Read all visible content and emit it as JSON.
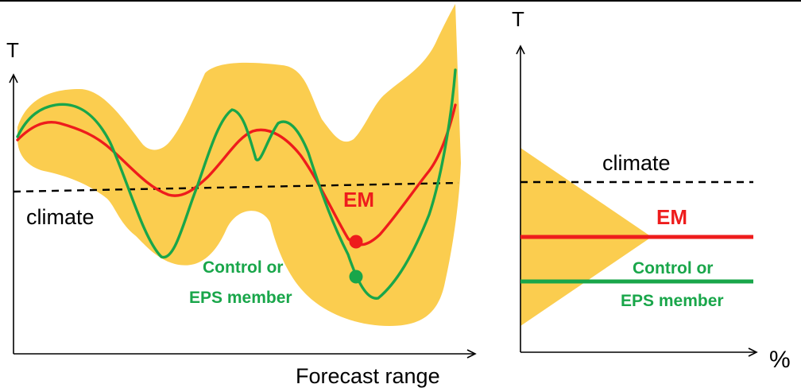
{
  "left_panel": {
    "y_axis_label": "T",
    "x_axis_label": "Forecast range",
    "climate_label": "climate",
    "em_label": "EM",
    "member_label_line1": "Control or",
    "member_label_line2": "EPS member"
  },
  "right_panel": {
    "y_axis_label": "T",
    "x_axis_label": "%",
    "climate_label": "climate",
    "em_label": "EM",
    "member_label_line1": "Control or",
    "member_label_line2": "EPS member"
  },
  "colors": {
    "spread": "#fbcd4f",
    "em": "#ee1c1c",
    "member": "#19a64a",
    "climate": "#000000",
    "axis": "#000000"
  }
}
